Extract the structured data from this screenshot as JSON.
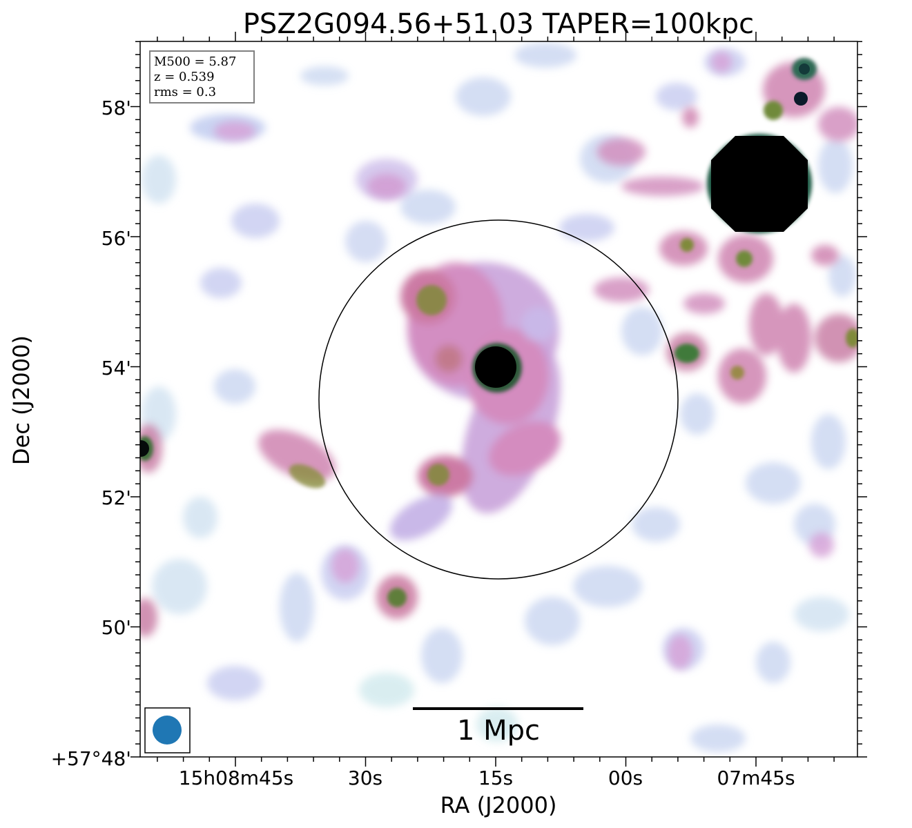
{
  "figure": {
    "title": "PSZ2G094.56+51.03 TAPER=100kpc",
    "info_box": {
      "m500": "M500 = 5.87",
      "z": "z = 0.539",
      "rms": "rms = 0.3"
    },
    "scale_bar_label": "1 Mpc",
    "x_axis": {
      "label": "RA (J2000)",
      "ticks": [
        "15h08m45s",
        "30s",
        "15s",
        "00s",
        "07m45s"
      ]
    },
    "y_axis": {
      "label": "Dec (J2000)",
      "ticks": [
        "58'",
        "56'",
        "54'",
        "52'",
        "50'",
        "+57°48'"
      ]
    },
    "colormap": "cubehelix (white → light blue → pink → olive-green → black)",
    "overlays": [
      "circle-r500",
      "beam-ellipse",
      "scale-bar"
    ]
  }
}
